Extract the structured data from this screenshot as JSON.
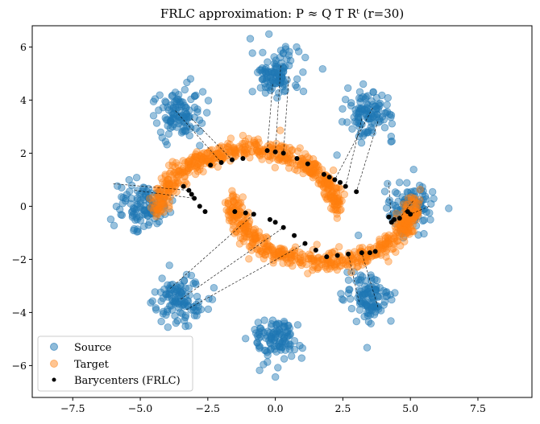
{
  "chart_data": {
    "type": "scatter",
    "title": "FRLC approximation: P ≈ Q T Rᵗ (r=30)",
    "xlabel": "",
    "ylabel": "",
    "xlim": [
      -9.0,
      9.5
    ],
    "ylim": [
      -7.2,
      6.8
    ],
    "xticks": [
      -7.5,
      -5.0,
      -2.5,
      0.0,
      2.5,
      5.0,
      7.5
    ],
    "xtick_labels": [
      "−7.5",
      "−5.0",
      "−2.5",
      "0.0",
      "2.5",
      "5.0",
      "7.5"
    ],
    "yticks": [
      -6,
      -4,
      -2,
      0,
      2,
      4,
      6
    ],
    "ytick_labels": [
      "−6",
      "−4",
      "−2",
      "0",
      "2",
      "4",
      "6"
    ],
    "grid": false,
    "legend_position": "lower-left",
    "colors": {
      "source": "#1f77b4",
      "target": "#ff7f0e",
      "barycenters": "#000000",
      "lines": "#000000"
    },
    "series": [
      {
        "name": "Source",
        "kind": "gaussian-clusters",
        "cluster_centers": [
          [
            0.0,
            5.0
          ],
          [
            3.5,
            3.5
          ],
          [
            5.0,
            0.0
          ],
          [
            3.5,
            -3.5
          ],
          [
            0.0,
            -5.0
          ],
          [
            -3.5,
            -3.5
          ],
          [
            -5.0,
            0.0
          ],
          [
            -3.5,
            3.5
          ]
        ],
        "cluster_std": 0.45,
        "points_per_cluster": 110
      },
      {
        "name": "Target",
        "kind": "two-moons",
        "moon_1_center": [
          0.0,
          -0.2
        ],
        "moon_1_radius": [
          4.5,
          2.4
        ],
        "moon_1_arc_deg": [
          0,
          180
        ],
        "moon_2_center": [
          0.0,
          0.2
        ],
        "moon_2_radius": [
          4.5,
          2.4
        ],
        "moon_2_arc_deg": [
          180,
          360
        ],
        "noise": 0.18,
        "points_per_moon": 520
      },
      {
        "name": "Barycenters (FRLC)",
        "kind": "points",
        "points": [
          [
            -2.0,
            1.65
          ],
          [
            -2.4,
            1.55
          ],
          [
            -1.6,
            1.75
          ],
          [
            -1.2,
            1.8
          ],
          [
            0.0,
            2.05
          ],
          [
            -0.3,
            2.1
          ],
          [
            0.3,
            2.0
          ],
          [
            1.8,
            1.2
          ],
          [
            2.2,
            1.0
          ],
          [
            2.6,
            0.75
          ],
          [
            3.0,
            0.55
          ],
          [
            2.0,
            1.1
          ],
          [
            2.4,
            0.9
          ],
          [
            1.2,
            1.6
          ],
          [
            0.8,
            1.8
          ],
          [
            4.2,
            -0.4
          ],
          [
            4.6,
            -0.45
          ],
          [
            5.0,
            -0.3
          ],
          [
            4.4,
            -0.5
          ],
          [
            4.9,
            -0.2
          ],
          [
            4.3,
            -0.6
          ],
          [
            2.7,
            -1.8
          ],
          [
            3.2,
            -1.75
          ],
          [
            3.7,
            -1.7
          ],
          [
            2.3,
            -1.85
          ],
          [
            1.9,
            -1.9
          ],
          [
            3.5,
            -1.75
          ],
          [
            -1.5,
            -0.2
          ],
          [
            -0.8,
            -0.3
          ],
          [
            -0.2,
            -0.5
          ],
          [
            0.3,
            -0.8
          ],
          [
            0.7,
            -1.1
          ],
          [
            1.1,
            -1.4
          ],
          [
            1.5,
            -1.65
          ],
          [
            -1.1,
            -0.25
          ],
          [
            0.0,
            -0.6
          ],
          [
            -3.2,
            0.6
          ],
          [
            -3.0,
            0.3
          ],
          [
            -2.8,
            0.0
          ],
          [
            -2.6,
            -0.2
          ],
          [
            -3.4,
            0.75
          ],
          [
            -3.1,
            0.45
          ]
        ],
        "point_size": 3
      }
    ],
    "connections": [
      {
        "from": [
          0.2,
          5.3
        ],
        "to": [
          0.0,
          2.05
        ]
      },
      {
        "from": [
          -0.1,
          4.6
        ],
        "to": [
          -0.3,
          2.1
        ]
      },
      {
        "from": [
          0.5,
          4.9
        ],
        "to": [
          0.3,
          2.0
        ]
      },
      {
        "from": [
          3.6,
          3.7
        ],
        "to": [
          2.2,
          1.0
        ]
      },
      {
        "from": [
          3.2,
          3.3
        ],
        "to": [
          2.6,
          0.75
        ]
      },
      {
        "from": [
          3.8,
          3.2
        ],
        "to": [
          3.0,
          0.55
        ]
      },
      {
        "from": [
          5.1,
          0.2
        ],
        "to": [
          4.6,
          -0.45
        ]
      },
      {
        "from": [
          5.7,
          0.0
        ],
        "to": [
          5.0,
          -0.3
        ]
      },
      {
        "from": [
          4.2,
          0.9
        ],
        "to": [
          4.3,
          -0.6
        ]
      },
      {
        "from": [
          3.8,
          -3.8
        ],
        "to": [
          3.2,
          -1.75
        ]
      },
      {
        "from": [
          3.1,
          -3.6
        ],
        "to": [
          2.7,
          -1.8
        ]
      },
      {
        "from": [
          -3.5,
          -3.5
        ],
        "to": [
          0.3,
          -0.8
        ]
      },
      {
        "from": [
          -3.9,
          -3.1
        ],
        "to": [
          -0.8,
          -0.3
        ]
      },
      {
        "from": [
          -3.3,
          -3.9
        ],
        "to": [
          1.1,
          -1.4
        ]
      },
      {
        "from": [
          -6.0,
          0.85
        ],
        "to": [
          -3.2,
          0.6
        ]
      },
      {
        "from": [
          -5.2,
          0.6
        ],
        "to": [
          -3.0,
          0.3
        ]
      },
      {
        "from": [
          -3.7,
          3.6
        ],
        "to": [
          -2.0,
          1.65
        ]
      },
      {
        "from": [
          -3.1,
          3.3
        ],
        "to": [
          -1.6,
          1.75
        ]
      }
    ]
  },
  "legend": {
    "items": [
      {
        "label": "Source",
        "series": "Source"
      },
      {
        "label": "Target",
        "series": "Target"
      },
      {
        "label": "Barycenters (FRLC)",
        "series": "Barycenters (FRLC)"
      }
    ]
  }
}
